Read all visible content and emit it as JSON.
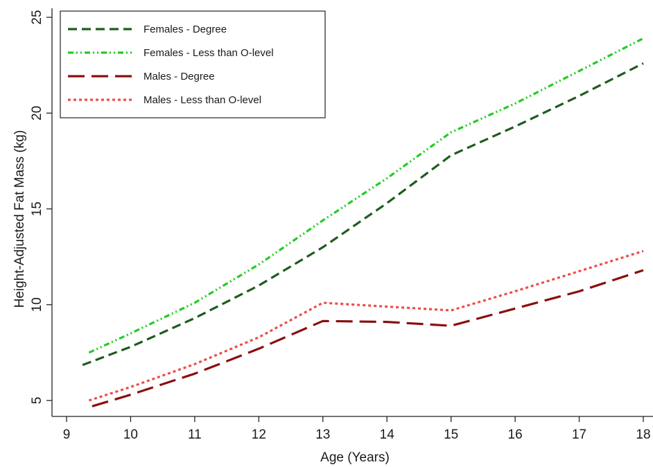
{
  "chart_data": {
    "type": "line",
    "xlabel": "Age (Years)",
    "ylabel": "Height-Adjusted Fat Mass (kg)",
    "xlim": [
      9,
      18
    ],
    "ylim": [
      4,
      25
    ],
    "xticks": [
      "9",
      "10",
      "11",
      "12",
      "13",
      "14",
      "15",
      "16",
      "17",
      "18"
    ],
    "yticks": [
      "5",
      "10",
      "15",
      "20",
      "25"
    ],
    "grid": false,
    "legend_position": "top-left",
    "series": [
      {
        "name": "Females - Degree",
        "color": "#1e5c1e",
        "dash": "dashed",
        "points": [
          [
            9.25,
            6.85
          ],
          [
            10,
            7.8
          ],
          [
            11,
            9.3
          ],
          [
            12,
            11.0
          ],
          [
            13,
            13.0
          ],
          [
            14,
            15.3
          ],
          [
            15,
            17.8
          ],
          [
            16,
            19.3
          ],
          [
            17,
            20.9
          ],
          [
            18,
            22.6
          ]
        ]
      },
      {
        "name": "Females - Less than O-level",
        "color": "#22cc22",
        "dash": "dash-dot-dot",
        "points": [
          [
            9.35,
            7.5
          ],
          [
            10,
            8.5
          ],
          [
            11,
            10.1
          ],
          [
            12,
            12.1
          ],
          [
            13,
            14.4
          ],
          [
            14,
            16.6
          ],
          [
            15,
            19.0
          ],
          [
            16,
            20.5
          ],
          [
            17,
            22.2
          ],
          [
            18,
            23.9
          ]
        ]
      },
      {
        "name": "Males - Degree",
        "color": "#8b0e0e",
        "dash": "long-dash",
        "points": [
          [
            9.4,
            4.7
          ],
          [
            10,
            5.3
          ],
          [
            11,
            6.4
          ],
          [
            12,
            7.7
          ],
          [
            13,
            9.15
          ],
          [
            14,
            9.1
          ],
          [
            15,
            8.9
          ],
          [
            16,
            9.8
          ],
          [
            17,
            10.7
          ],
          [
            18,
            11.8
          ]
        ]
      },
      {
        "name": "Males - Less than O-level",
        "color": "#f04a4a",
        "dash": "dotted",
        "points": [
          [
            9.35,
            5.0
          ],
          [
            10,
            5.7
          ],
          [
            11,
            6.9
          ],
          [
            12,
            8.3
          ],
          [
            13,
            10.1
          ],
          [
            14,
            9.9
          ],
          [
            15,
            9.7
          ],
          [
            16,
            10.7
          ],
          [
            17,
            11.75
          ],
          [
            18,
            12.8
          ]
        ]
      }
    ]
  }
}
